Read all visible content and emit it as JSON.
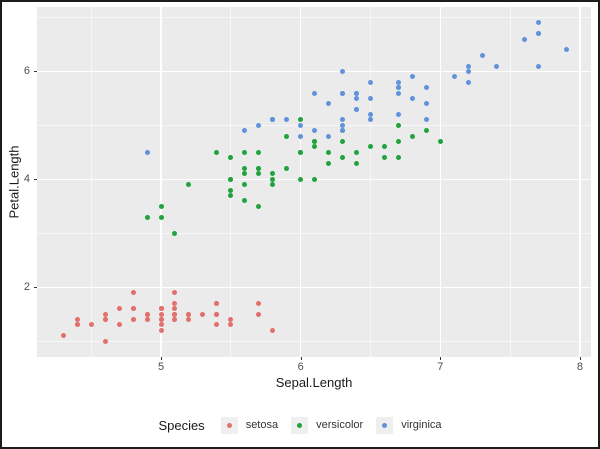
{
  "chart_data": {
    "type": "scatter",
    "title": "",
    "xlabel": "Sepal.Length",
    "ylabel": "Petal.Length",
    "legend_title": "Species",
    "legend_position": "bottom",
    "xlim": [
      4.112,
      8.079
    ],
    "ylim": [
      0.705,
      7.195
    ],
    "x_ticks": [
      5,
      6,
      7,
      8
    ],
    "x_tick_labels": [
      "5",
      "6",
      "7",
      "8"
    ],
    "y_ticks": [
      2,
      4,
      6
    ],
    "y_tick_labels": [
      "2",
      "4",
      "6"
    ],
    "x_minor_ticks": [
      4.5,
      5.5,
      6.5,
      7.5
    ],
    "y_minor_ticks": [
      1,
      3,
      5,
      7
    ],
    "grid": true,
    "panel_background": "#EBEBEB",
    "gridline_color": "#FFFFFF",
    "legend_key_background": "#EFEFEF",
    "series": [
      {
        "name": "setosa",
        "color": "#E0716B",
        "points": [
          [
            5.1,
            1.4
          ],
          [
            4.9,
            1.4
          ],
          [
            4.7,
            1.3
          ],
          [
            4.6,
            1.5
          ],
          [
            5.0,
            1.4
          ],
          [
            5.4,
            1.7
          ],
          [
            4.6,
            1.4
          ],
          [
            5.0,
            1.5
          ],
          [
            4.4,
            1.4
          ],
          [
            4.9,
            1.5
          ],
          [
            5.4,
            1.5
          ],
          [
            4.8,
            1.6
          ],
          [
            4.8,
            1.4
          ],
          [
            4.3,
            1.1
          ],
          [
            5.8,
            1.2
          ],
          [
            5.7,
            1.5
          ],
          [
            5.4,
            1.3
          ],
          [
            5.1,
            1.4
          ],
          [
            5.7,
            1.7
          ],
          [
            5.1,
            1.5
          ],
          [
            5.4,
            1.7
          ],
          [
            5.1,
            1.5
          ],
          [
            4.6,
            1.0
          ],
          [
            5.1,
            1.7
          ],
          [
            4.8,
            1.9
          ],
          [
            5.0,
            1.6
          ],
          [
            5.0,
            1.6
          ],
          [
            5.2,
            1.5
          ],
          [
            5.2,
            1.4
          ],
          [
            4.7,
            1.6
          ],
          [
            4.8,
            1.6
          ],
          [
            5.4,
            1.5
          ],
          [
            5.2,
            1.5
          ],
          [
            5.5,
            1.4
          ],
          [
            4.9,
            1.5
          ],
          [
            5.0,
            1.2
          ],
          [
            5.5,
            1.3
          ],
          [
            4.9,
            1.4
          ],
          [
            4.4,
            1.3
          ],
          [
            5.1,
            1.5
          ],
          [
            5.0,
            1.3
          ],
          [
            4.5,
            1.3
          ],
          [
            4.4,
            1.3
          ],
          [
            5.0,
            1.6
          ],
          [
            5.1,
            1.9
          ],
          [
            4.8,
            1.4
          ],
          [
            5.1,
            1.6
          ],
          [
            4.6,
            1.4
          ],
          [
            5.3,
            1.5
          ],
          [
            5.0,
            1.4
          ]
        ]
      },
      {
        "name": "versicolor",
        "color": "#21A23C",
        "points": [
          [
            7.0,
            4.7
          ],
          [
            6.4,
            4.5
          ],
          [
            6.9,
            4.9
          ],
          [
            5.5,
            4.0
          ],
          [
            6.5,
            4.6
          ],
          [
            5.7,
            4.5
          ],
          [
            6.3,
            4.7
          ],
          [
            4.9,
            3.3
          ],
          [
            6.6,
            4.6
          ],
          [
            5.2,
            3.9
          ],
          [
            5.0,
            3.5
          ],
          [
            5.9,
            4.2
          ],
          [
            6.0,
            4.0
          ],
          [
            6.1,
            4.7
          ],
          [
            5.6,
            3.6
          ],
          [
            6.7,
            4.4
          ],
          [
            5.6,
            4.5
          ],
          [
            5.8,
            4.1
          ],
          [
            6.2,
            4.5
          ],
          [
            5.6,
            3.9
          ],
          [
            5.9,
            4.8
          ],
          [
            6.1,
            4.0
          ],
          [
            6.3,
            4.9
          ],
          [
            6.1,
            4.7
          ],
          [
            6.4,
            4.3
          ],
          [
            6.6,
            4.4
          ],
          [
            6.8,
            4.8
          ],
          [
            6.7,
            5.0
          ],
          [
            6.0,
            4.5
          ],
          [
            5.7,
            3.5
          ],
          [
            5.5,
            3.8
          ],
          [
            5.5,
            3.7
          ],
          [
            5.8,
            3.9
          ],
          [
            6.0,
            5.1
          ],
          [
            5.4,
            4.5
          ],
          [
            6.0,
            4.5
          ],
          [
            6.7,
            4.7
          ],
          [
            6.3,
            4.4
          ],
          [
            5.6,
            4.1
          ],
          [
            5.5,
            4.0
          ],
          [
            5.5,
            4.4
          ],
          [
            6.1,
            4.6
          ],
          [
            5.8,
            4.0
          ],
          [
            5.0,
            3.3
          ],
          [
            5.6,
            4.2
          ],
          [
            5.7,
            4.2
          ],
          [
            5.7,
            4.2
          ],
          [
            6.2,
            4.3
          ],
          [
            5.1,
            3.0
          ],
          [
            5.7,
            4.1
          ]
        ]
      },
      {
        "name": "virginica",
        "color": "#6093DB",
        "points": [
          [
            6.3,
            6.0
          ],
          [
            5.8,
            5.1
          ],
          [
            7.1,
            5.9
          ],
          [
            6.3,
            5.6
          ],
          [
            6.5,
            5.8
          ],
          [
            7.6,
            6.6
          ],
          [
            4.9,
            4.5
          ],
          [
            7.3,
            6.3
          ],
          [
            6.7,
            5.8
          ],
          [
            7.2,
            6.1
          ],
          [
            6.5,
            5.1
          ],
          [
            6.4,
            5.3
          ],
          [
            6.8,
            5.5
          ],
          [
            5.7,
            5.0
          ],
          [
            5.8,
            5.1
          ],
          [
            6.4,
            5.3
          ],
          [
            6.5,
            5.5
          ],
          [
            7.7,
            6.7
          ],
          [
            7.7,
            6.9
          ],
          [
            6.0,
            5.0
          ],
          [
            6.9,
            5.7
          ],
          [
            5.6,
            4.9
          ],
          [
            7.7,
            6.7
          ],
          [
            6.3,
            4.9
          ],
          [
            6.7,
            5.7
          ],
          [
            7.2,
            6.0
          ],
          [
            6.2,
            4.8
          ],
          [
            6.1,
            4.9
          ],
          [
            6.4,
            5.6
          ],
          [
            7.2,
            5.8
          ],
          [
            7.4,
            6.1
          ],
          [
            7.9,
            6.4
          ],
          [
            6.4,
            5.6
          ],
          [
            6.3,
            5.1
          ],
          [
            6.1,
            5.6
          ],
          [
            7.7,
            6.1
          ],
          [
            6.3,
            5.6
          ],
          [
            6.4,
            5.5
          ],
          [
            6.0,
            4.8
          ],
          [
            6.9,
            5.4
          ],
          [
            6.7,
            5.6
          ],
          [
            6.9,
            5.1
          ],
          [
            5.8,
            5.1
          ],
          [
            6.8,
            5.9
          ],
          [
            6.7,
            5.7
          ],
          [
            6.7,
            5.2
          ],
          [
            6.3,
            5.0
          ],
          [
            6.5,
            5.2
          ],
          [
            6.2,
            5.4
          ],
          [
            5.9,
            5.1
          ]
        ]
      }
    ]
  }
}
